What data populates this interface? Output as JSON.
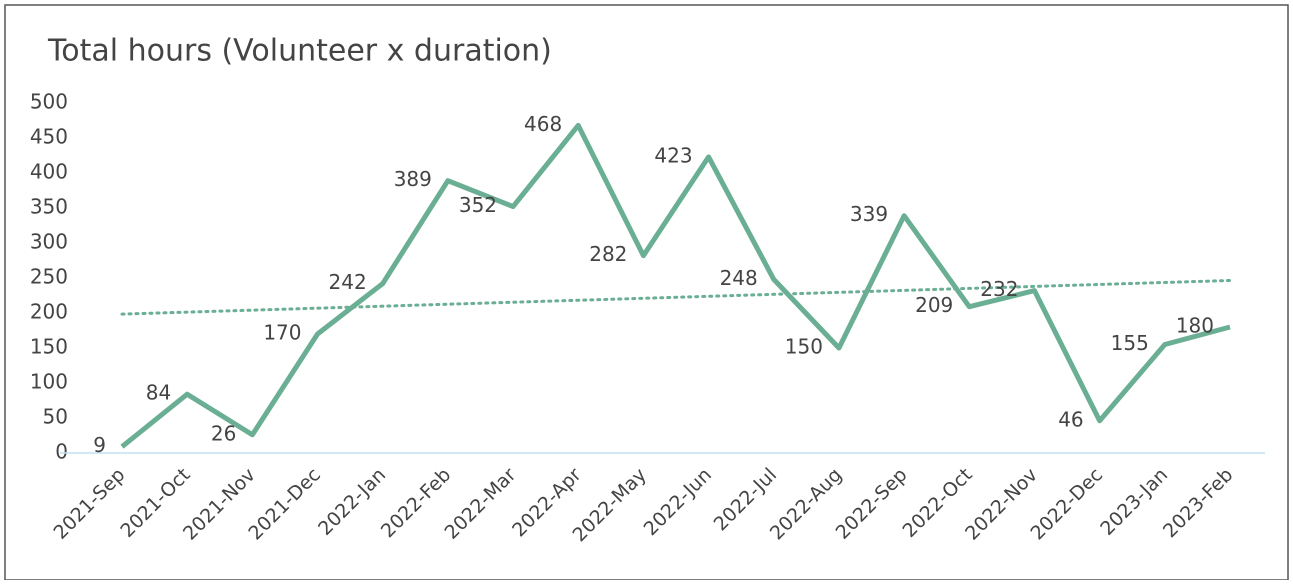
{
  "chart_data": {
    "type": "line",
    "title": "Total hours (Volunteer x duration)",
    "categories": [
      "2021-Sep",
      "2021-Oct",
      "2021-Nov",
      "2021-Dec",
      "2022-Jan",
      "2022-Feb",
      "2022-Mar",
      "2022-Apr",
      "2022-May",
      "2022-Jun",
      "2022-Jul",
      "2022-Aug",
      "2022-Sep",
      "2022-Oct",
      "2022-Nov",
      "2022-Dec",
      "2023-Jan",
      "2023-Feb"
    ],
    "series": [
      {
        "name": "Total hours",
        "color": "#6aae94",
        "values": [
          9,
          84,
          26,
          170,
          242,
          389,
          352,
          468,
          282,
          423,
          248,
          150,
          339,
          209,
          232,
          46,
          155,
          180
        ]
      }
    ],
    "trendline": "linear",
    "ylim": [
      0,
      500
    ],
    "yticks": [
      0,
      50,
      100,
      150,
      200,
      250,
      300,
      350,
      400,
      450,
      500
    ],
    "grid": false,
    "legend": false
  }
}
